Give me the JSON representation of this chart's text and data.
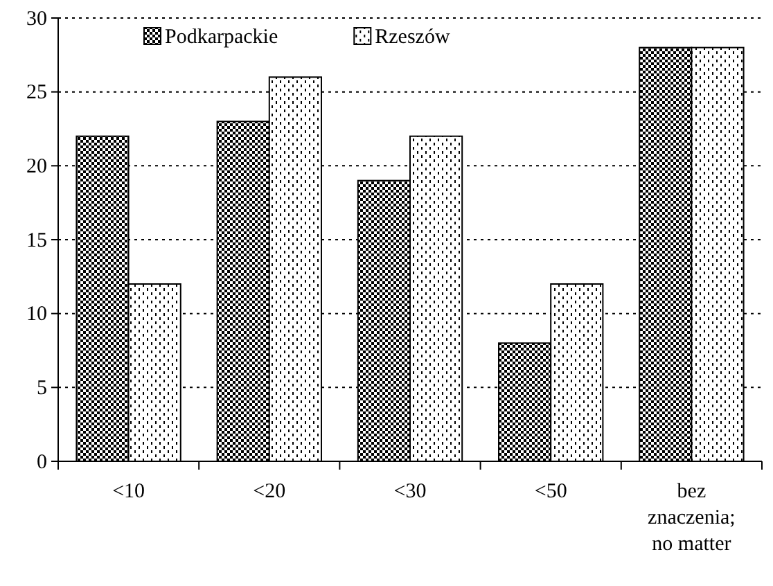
{
  "chart_data": {
    "type": "bar",
    "categories": [
      "<10",
      "<20",
      "<30",
      "<50",
      "bez znaczenia; no matter"
    ],
    "series": [
      {
        "name": "Podkarpackie",
        "color": "#000000",
        "values": [
          22,
          23,
          19,
          8,
          28
        ]
      },
      {
        "name": "Rzeszów",
        "color": "#000000",
        "values": [
          12,
          26,
          22,
          12,
          28
        ]
      }
    ],
    "ylim": [
      0,
      30
    ],
    "yticks": [
      0,
      5,
      10,
      15,
      20,
      25,
      30
    ],
    "grid": "y",
    "legend": "top left"
  }
}
